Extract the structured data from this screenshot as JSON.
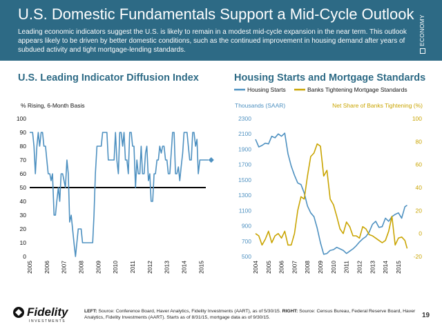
{
  "header": {
    "title": "U.S. Domestic Fundamentals Support a Mid-Cycle Outlook",
    "subtitle": "Leading economic indicators suggest the U.S. is likely to remain in a modest mid-cycle expansion in the near term. This outlook appears likely to be driven by better domestic conditions, such as the continued improvement in housing demand after years of subdued activity and tight mortgage-lending standards.",
    "side_tag": "ECONOMY"
  },
  "colors": {
    "header_bg": "#2d6a85",
    "series_blue": "#4d90c0",
    "series_gold": "#c9a400",
    "reference_line": "#000000"
  },
  "footer": {
    "left_label": "LEFT:",
    "left_text": " Source: Conference Board, Haver Analytics, Fidelity Investments (AART), as of 5/30/15. ",
    "right_label": "RIGHT:",
    "right_text": " Source: Census Bureau, Federal Reserve Board, Haver Analytics, Fidelity Investments (AART). Starts as of 8/31/15, mortgage data as of 9/30/15.",
    "page_number": "19",
    "logo_text": "Fidelity",
    "logo_subtext": "INVESTMENTS"
  },
  "chart_data": [
    {
      "type": "line",
      "title": "U.S. Leading Indicator Diffusion Index",
      "ylabel": "% Rising, 6-Month Basis",
      "xlabel": "",
      "xlim": [
        2005,
        2015.75
      ],
      "ylim": [
        0,
        100
      ],
      "yticks": [
        0,
        10,
        20,
        30,
        40,
        50,
        60,
        70,
        80,
        90,
        100
      ],
      "xticks": [
        "2005",
        "2006",
        "2007",
        "2008",
        "2009",
        "2010",
        "2011",
        "2012",
        "2013",
        "2014",
        "2015"
      ],
      "reference_line": 50,
      "grid": false,
      "series": [
        {
          "x": [
            2005.0,
            2005.17,
            2005.25,
            2005.33,
            2005.42,
            2005.5,
            2005.58,
            2005.67,
            2005.75,
            2005.83,
            2005.92,
            2006.0,
            2006.08,
            2006.17,
            2006.25,
            2006.33,
            2006.42,
            2006.5,
            2006.58,
            2006.67,
            2006.75,
            2006.83,
            2006.92,
            2007.0,
            2007.08,
            2007.17,
            2007.25,
            2007.33,
            2007.42,
            2007.5,
            2007.58,
            2007.67,
            2007.75,
            2007.83,
            2007.92,
            2008.0,
            2008.08,
            2008.17,
            2008.25,
            2008.33,
            2008.42,
            2008.5,
            2008.58,
            2008.67,
            2008.75,
            2008.83,
            2008.92,
            2009.0,
            2009.08,
            2009.17,
            2009.25,
            2009.33,
            2009.42,
            2009.5,
            2009.58,
            2009.67,
            2009.75,
            2009.83,
            2009.92,
            2010.0,
            2010.08,
            2010.17,
            2010.25,
            2010.33,
            2010.42,
            2010.5,
            2010.58,
            2010.67,
            2010.75,
            2010.83,
            2010.92,
            2011.0,
            2011.08,
            2011.17,
            2011.25,
            2011.33,
            2011.42,
            2011.5,
            2011.58,
            2011.67,
            2011.75,
            2011.83,
            2011.92,
            2012.0,
            2012.08,
            2012.17,
            2012.25,
            2012.33,
            2012.42,
            2012.5,
            2012.58,
            2012.67,
            2012.75,
            2012.83,
            2012.92,
            2013.0,
            2013.08,
            2013.17,
            2013.25,
            2013.33,
            2013.42,
            2013.5,
            2013.58,
            2013.67,
            2013.75,
            2013.83,
            2013.92,
            2014.0,
            2014.08,
            2014.17,
            2014.25,
            2014.33,
            2014.42,
            2014.5,
            2014.58,
            2014.67,
            2014.75,
            2014.83,
            2014.92,
            2015.0,
            2015.08,
            2015.17,
            2015.25,
            2015.33,
            2015.42
          ],
          "values": [
            90,
            90,
            80,
            60,
            80,
            90,
            80,
            90,
            90,
            80,
            80,
            70,
            60,
            60,
            55,
            60,
            30,
            30,
            40,
            50,
            40,
            60,
            60,
            55,
            50,
            70,
            60,
            25,
            30,
            20,
            10,
            0,
            10,
            20,
            20,
            20,
            10,
            10,
            10,
            10,
            10,
            10,
            10,
            10,
            30,
            60,
            80,
            80,
            80,
            80,
            90,
            90,
            90,
            90,
            70,
            70,
            70,
            70,
            70,
            90,
            70,
            60,
            90,
            90,
            80,
            90,
            70,
            70,
            60,
            90,
            90,
            80,
            80,
            50,
            70,
            60,
            60,
            80,
            60,
            60,
            75,
            80,
            55,
            60,
            40,
            40,
            60,
            60,
            70,
            70,
            80,
            75,
            80,
            80,
            70,
            70,
            60,
            60,
            75,
            90,
            90,
            60,
            60,
            65,
            55,
            65,
            75,
            90,
            90,
            90,
            80,
            70,
            70,
            90,
            90,
            80,
            85,
            60,
            70,
            70,
            70,
            70,
            70,
            70,
            70
          ]
        }
      ]
    },
    {
      "type": "line",
      "title": "Housing Starts and Mortgage Standards",
      "y1label": "Thousands (SAAR)",
      "y2label": "Net Share of Banks Tightening (%)",
      "xlim": [
        2004,
        2015.75
      ],
      "y1lim": [
        500,
        2300
      ],
      "y2lim": [
        -20,
        100
      ],
      "y1ticks": [
        500,
        700,
        900,
        1100,
        1300,
        1500,
        1700,
        1900,
        2100,
        2300
      ],
      "y2ticks": [
        -20,
        0,
        20,
        40,
        60,
        80,
        100
      ],
      "xticks": [
        "2004",
        "2005",
        "2006",
        "2007",
        "2008",
        "2009",
        "2010",
        "2011",
        "2012",
        "2013",
        "2014",
        "2015"
      ],
      "legend": "top",
      "grid": false,
      "series": [
        {
          "name": "Housing Starts",
          "axis": "left",
          "x": [
            2004.0,
            2004.25,
            2004.5,
            2004.75,
            2005.0,
            2005.25,
            2005.5,
            2005.75,
            2006.0,
            2006.25,
            2006.5,
            2006.75,
            2007.0,
            2007.25,
            2007.5,
            2007.75,
            2008.0,
            2008.25,
            2008.5,
            2008.75,
            2009.0,
            2009.25,
            2009.5,
            2009.75,
            2010.0,
            2010.25,
            2010.5,
            2010.75,
            2011.0,
            2011.25,
            2011.5,
            2011.75,
            2012.0,
            2012.25,
            2012.5,
            2012.75,
            2013.0,
            2013.25,
            2013.5,
            2013.75,
            2014.0,
            2014.25,
            2014.5,
            2014.75,
            2015.0,
            2015.25,
            2015.5,
            2015.67
          ],
          "values": [
            2030,
            1930,
            1950,
            1980,
            1970,
            2070,
            2050,
            2100,
            2070,
            2110,
            1840,
            1680,
            1560,
            1460,
            1440,
            1330,
            1160,
            1070,
            1020,
            870,
            680,
            530,
            540,
            580,
            590,
            620,
            600,
            580,
            540,
            570,
            600,
            640,
            690,
            730,
            760,
            820,
            920,
            960,
            880,
            890,
            1000,
            960,
            1020,
            1050,
            1070,
            1000,
            1150,
            1170
          ]
        },
        {
          "name": "Banks Tightening Mortgage Standards",
          "axis": "right",
          "x": [
            2004.0,
            2004.25,
            2004.5,
            2004.75,
            2005.0,
            2005.25,
            2005.5,
            2005.75,
            2006.0,
            2006.25,
            2006.5,
            2006.75,
            2007.0,
            2007.25,
            2007.5,
            2007.75,
            2008.0,
            2008.25,
            2008.5,
            2008.75,
            2009.0,
            2009.25,
            2009.5,
            2009.75,
            2010.0,
            2010.25,
            2010.5,
            2010.75,
            2011.0,
            2011.25,
            2011.5,
            2011.75,
            2012.0,
            2012.25,
            2012.5,
            2012.75,
            2013.0,
            2013.25,
            2013.5,
            2013.75,
            2014.0,
            2014.25,
            2014.5,
            2014.75,
            2015.0,
            2015.25,
            2015.5,
            2015.67
          ],
          "values": [
            0,
            -2,
            -10,
            -5,
            2,
            -8,
            -2,
            0,
            -4,
            2,
            -10,
            -10,
            0,
            20,
            32,
            30,
            50,
            67,
            70,
            78,
            76,
            50,
            55,
            30,
            25,
            15,
            4,
            0,
            10,
            6,
            -2,
            -2,
            -4,
            6,
            4,
            -1,
            -2,
            -4,
            -6,
            -8,
            -6,
            2,
            15,
            -10,
            -4,
            -3,
            -6,
            -13
          ]
        }
      ]
    }
  ]
}
